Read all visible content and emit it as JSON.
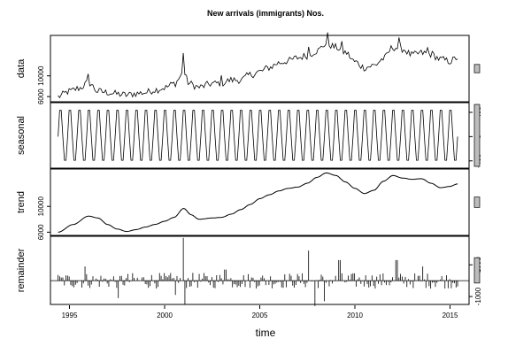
{
  "chart_data": {
    "type": "line",
    "title": "New arrivals (immigrants) Nos.",
    "xlabel": "time",
    "x_start": 1994.4,
    "x_end": 2015.4,
    "xlim": [
      1994,
      2016
    ],
    "x_ticks": [
      1995,
      2000,
      2005,
      2010,
      2015
    ],
    "grid": false,
    "panels": [
      {
        "name": "data",
        "ylabel": "data",
        "ylim": [
          5000,
          17800
        ],
        "yticks": [
          6000,
          10000
        ],
        "y_axis_side": "left",
        "anchors": [
          [
            1994.4,
            6000
          ],
          [
            1995.0,
            7000
          ],
          [
            1995.5,
            7600
          ],
          [
            1996.0,
            8700
          ],
          [
            1996.5,
            7000
          ],
          [
            1997.0,
            6800
          ],
          [
            1997.5,
            6500
          ],
          [
            1998.0,
            6300
          ],
          [
            1998.5,
            6600
          ],
          [
            1999.0,
            6800
          ],
          [
            1999.5,
            7300
          ],
          [
            2000.0,
            7700
          ],
          [
            2000.5,
            8500
          ],
          [
            2001.0,
            10500
          ],
          [
            2001.3,
            8500
          ],
          [
            2001.8,
            7800
          ],
          [
            2002.5,
            8500
          ],
          [
            2003.0,
            8600
          ],
          [
            2003.5,
            9200
          ],
          [
            2004.0,
            9200
          ],
          [
            2004.5,
            10200
          ],
          [
            2005.0,
            10800
          ],
          [
            2005.5,
            11600
          ],
          [
            2006.0,
            12500
          ],
          [
            2006.5,
            12900
          ],
          [
            2007.0,
            13500
          ],
          [
            2007.5,
            13900
          ],
          [
            2008.0,
            14800
          ],
          [
            2008.5,
            16200
          ],
          [
            2009.0,
            15500
          ],
          [
            2009.5,
            14500
          ],
          [
            2010.0,
            12700
          ],
          [
            2010.5,
            11600
          ],
          [
            2011.0,
            12000
          ],
          [
            2011.5,
            13300
          ],
          [
            2012.0,
            15500
          ],
          [
            2012.5,
            15200
          ],
          [
            2013.0,
            14000
          ],
          [
            2013.5,
            14400
          ],
          [
            2014.0,
            14200
          ],
          [
            2014.5,
            13200
          ],
          [
            2015.0,
            12800
          ],
          [
            2015.4,
            13500
          ]
        ],
        "spikes": [
          [
            2001.0,
            4200
          ],
          [
            1996.0,
            1200
          ],
          [
            2003.0,
            900
          ],
          [
            2007.6,
            1500
          ],
          [
            2008.6,
            1600
          ],
          [
            2009.3,
            1200
          ],
          [
            2012.3,
            1500
          ],
          [
            2013.8,
            1000
          ]
        ],
        "noise": 700,
        "scale_bar_height": 1600
      },
      {
        "name": "seasonal",
        "ylabel": "seasonal",
        "ylim": [
          -520,
          560
        ],
        "yticks": [
          -400,
          0,
          400
        ],
        "y_axis_side": "right",
        "amplitude_high": 500,
        "amplitude_low": -450,
        "cycles_per_year": 2,
        "scale_bar_height": 1600
      },
      {
        "name": "trend",
        "ylabel": "trend",
        "ylim": [
          5500,
          15800
        ],
        "yticks": [
          6000,
          10000
        ],
        "y_axis_side": "left",
        "anchors": [
          [
            1994.4,
            6000
          ],
          [
            1995.2,
            7200
          ],
          [
            1996.0,
            8500
          ],
          [
            1996.5,
            8200
          ],
          [
            1997.0,
            7200
          ],
          [
            1997.5,
            6500
          ],
          [
            1998.0,
            6100
          ],
          [
            1998.5,
            6400
          ],
          [
            1999.0,
            6800
          ],
          [
            1999.5,
            7200
          ],
          [
            2000.0,
            7700
          ],
          [
            2000.5,
            8300
          ],
          [
            2001.0,
            9700
          ],
          [
            2001.4,
            8700
          ],
          [
            2001.8,
            8000
          ],
          [
            2002.5,
            8200
          ],
          [
            2003.0,
            8300
          ],
          [
            2003.5,
            8800
          ],
          [
            2004.0,
            9500
          ],
          [
            2004.5,
            10300
          ],
          [
            2005.0,
            11200
          ],
          [
            2005.5,
            11800
          ],
          [
            2006.0,
            12400
          ],
          [
            2006.5,
            12800
          ],
          [
            2007.0,
            13000
          ],
          [
            2007.5,
            13600
          ],
          [
            2008.0,
            14500
          ],
          [
            2008.5,
            15200
          ],
          [
            2009.0,
            14800
          ],
          [
            2009.5,
            13800
          ],
          [
            2010.0,
            12800
          ],
          [
            2010.5,
            12000
          ],
          [
            2011.0,
            12500
          ],
          [
            2011.5,
            13900
          ],
          [
            2012.0,
            14800
          ],
          [
            2012.5,
            14400
          ],
          [
            2013.0,
            14200
          ],
          [
            2013.5,
            14300
          ],
          [
            2014.0,
            13600
          ],
          [
            2014.5,
            12900
          ],
          [
            2015.0,
            13100
          ],
          [
            2015.4,
            13500
          ]
        ],
        "scale_bar_height": 1600
      },
      {
        "name": "remainder",
        "ylabel": "remainder",
        "ylim": [
          -1500,
          2800
        ],
        "yticks": [
          -1000,
          1000
        ],
        "y_axis_side": "right",
        "noise": 500,
        "big_spikes": [
          [
            2001.0,
            2700
          ],
          [
            2001.1,
            -1500
          ],
          [
            2007.6,
            1900
          ],
          [
            2007.9,
            -1600
          ],
          [
            2008.4,
            -1300
          ],
          [
            2009.2,
            1300
          ],
          [
            2012.2,
            1300
          ],
          [
            2013.6,
            900
          ],
          [
            1995.8,
            900
          ],
          [
            1997.6,
            -1100
          ],
          [
            2000.6,
            -900
          ],
          [
            2003.2,
            700
          ]
        ],
        "scale_bar_height": 1600
      }
    ]
  }
}
